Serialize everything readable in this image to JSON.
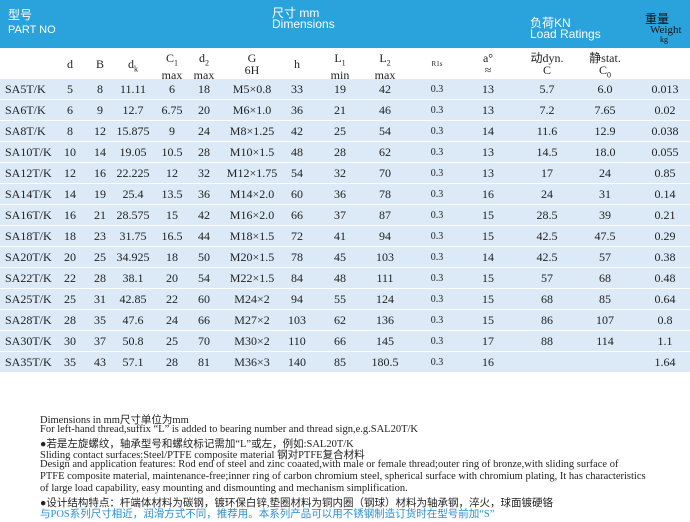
{
  "header": {
    "part_no": {
      "cn": "型号",
      "en": "PART NO"
    },
    "dimensions": {
      "cn": "尺寸 mm",
      "en": "Dimensions"
    },
    "load": {
      "cn": "负荷KN",
      "en": "Load Ratings"
    },
    "weight": {
      "cn": "重量",
      "en": "Weight",
      "unit": "kg"
    }
  },
  "table": {
    "columns": [
      {
        "text": "d"
      },
      {
        "text": "B"
      },
      {
        "text": "d",
        "sub": "k"
      },
      {
        "text": "C",
        "sub": "1",
        "line2": "max"
      },
      {
        "text": "d",
        "sub": "2",
        "line2": "max"
      },
      {
        "text": "G",
        "line2": "6H"
      },
      {
        "text": "h"
      },
      {
        "text": "L",
        "sub": "1",
        "line2": "min"
      },
      {
        "text": "L",
        "sub": "2",
        "line2": "max"
      },
      {
        "text": "R1s"
      },
      {
        "text": "a°",
        "line2": "≈"
      },
      {
        "text": "动dyn.",
        "line2": "C"
      },
      {
        "text": "静stat.",
        "line2": "C",
        "sub2": "0"
      }
    ],
    "rows": [
      [
        "SA5T/K",
        "5",
        "8",
        "11.11",
        "6",
        "18",
        "M5×0.8",
        "33",
        "19",
        "42",
        "0.3",
        "13",
        "5.7",
        "6.0",
        "0.013"
      ],
      [
        "SA6T/K",
        "6",
        "9",
        "12.7",
        "6.75",
        "20",
        "M6×1.0",
        "36",
        "21",
        "46",
        "0.3",
        "13",
        "7.2",
        "7.65",
        "0.02"
      ],
      [
        "SA8T/K",
        "8",
        "12",
        "15.875",
        "9",
        "24",
        "M8×1.25",
        "42",
        "25",
        "54",
        "0.3",
        "14",
        "11.6",
        "12.9",
        "0.038"
      ],
      [
        "SA10T/K",
        "10",
        "14",
        "19.05",
        "10.5",
        "28",
        "M10×1.5",
        "48",
        "28",
        "62",
        "0.3",
        "13",
        "14.5",
        "18.0",
        "0.055"
      ],
      [
        "SA12T/K",
        "12",
        "16",
        "22.225",
        "12",
        "32",
        "M12×1.75",
        "54",
        "32",
        "70",
        "0.3",
        "13",
        "17",
        "24",
        "0.85"
      ],
      [
        "SA14T/K",
        "14",
        "19",
        "25.4",
        "13.5",
        "36",
        "M14×2.0",
        "60",
        "36",
        "78",
        "0.3",
        "16",
        "24",
        "31",
        "0.14"
      ],
      [
        "SA16T/K",
        "16",
        "21",
        "28.575",
        "15",
        "42",
        "M16×2.0",
        "66",
        "37",
        "87",
        "0.3",
        "15",
        "28.5",
        "39",
        "0.21"
      ],
      [
        "SA18T/K",
        "18",
        "23",
        "31.75",
        "16.5",
        "44",
        "M18×1.5",
        "72",
        "41",
        "94",
        "0.3",
        "15",
        "42.5",
        "47.5",
        "0.29"
      ],
      [
        "SA20T/K",
        "20",
        "25",
        "34.925",
        "18",
        "50",
        "M20×1.5",
        "78",
        "45",
        "103",
        "0.3",
        "14",
        "42.5",
        "57",
        "0.38"
      ],
      [
        "SA22T/K",
        "22",
        "28",
        "38.1",
        "20",
        "54",
        "M22×1.5",
        "84",
        "48",
        "111",
        "0.3",
        "15",
        "57",
        "68",
        "0.48"
      ],
      [
        "SA25T/K",
        "25",
        "31",
        "42.85",
        "22",
        "60",
        "M24×2",
        "94",
        "55",
        "124",
        "0.3",
        "15",
        "68",
        "85",
        "0.64"
      ],
      [
        "SA28T/K",
        "28",
        "35",
        "47.6",
        "24",
        "66",
        "M27×2",
        "103",
        "62",
        "136",
        "0.3",
        "15",
        "86",
        "107",
        "0.8"
      ],
      [
        "SA30T/K",
        "30",
        "37",
        "50.8",
        "25",
        "70",
        "M30×2",
        "110",
        "66",
        "145",
        "0.3",
        "17",
        "88",
        "114",
        "1.1"
      ],
      [
        "SA35T/K",
        "35",
        "43",
        "57.1",
        "28",
        "81",
        "M36×3",
        "140",
        "85",
        "180.5",
        "0.3",
        "16",
        null,
        null,
        "1.64"
      ]
    ]
  },
  "notes": [
    "Dimensions in mm尺寸单位为mm",
    "For left-hand thread,suffix “L” is added to bearing number and thread sign,e.g.SAL20T/K",
    "●若是左旋螺纹，轴承型号和螺纹标记需加“L”或左，例如:SAL20T/K",
    "Sliding contact surfaces:Steel/PTFE composite material 钢对PTFE复合材料",
    "Design and application features: Rod end of steel and zinc coaated,with male or female thread;outer ring of bronze,with sliding surface of",
    "PTFE composite material, maintenance-free;inner ring of carbon chromium steel, spherical surface with chromium plating, It has characteristics",
    "of large load capability, easy mounting and dismounting and  mechanism simplification.",
    "●设计结构特点：杆端体材料为碳钢，镀环保白锌,垫圈材料为铜内圈（钢球）材料为轴承钢，淬火，球面镀硬铬",
    "与POS系列尺寸相近，润滑方式不同，推荐用。本系列产品可以用不锈钢制造订货时在型号前加“S”"
  ]
}
